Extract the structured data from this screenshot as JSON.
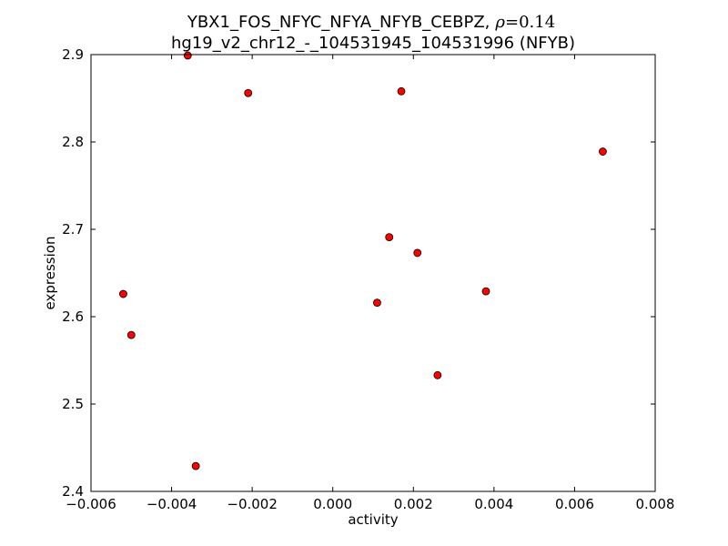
{
  "chart_data": {
    "type": "scatter",
    "title_line1": "YBX1_FOS_NFYC_NFYA_NFYB_CEBPZ,",
    "rho_symbol": "ρ",
    "rho_value": "=0.14",
    "title_line2": "hg19_v2_chr12_-_104531945_104531996 (NFYB)",
    "xlabel": "activity",
    "ylabel": "expression",
    "xlim": [
      -0.006,
      0.008
    ],
    "ylim": [
      2.4,
      2.9
    ],
    "xticks": [
      {
        "value": -0.006,
        "label": "−0.006"
      },
      {
        "value": -0.004,
        "label": "−0.004"
      },
      {
        "value": -0.002,
        "label": "−0.002"
      },
      {
        "value": 0.0,
        "label": "0.000"
      },
      {
        "value": 0.002,
        "label": "0.002"
      },
      {
        "value": 0.004,
        "label": "0.004"
      },
      {
        "value": 0.006,
        "label": "0.006"
      },
      {
        "value": 0.008,
        "label": "0.008"
      }
    ],
    "yticks": [
      {
        "value": 2.4,
        "label": "2.4"
      },
      {
        "value": 2.5,
        "label": "2.5"
      },
      {
        "value": 2.6,
        "label": "2.6"
      },
      {
        "value": 2.7,
        "label": "2.7"
      },
      {
        "value": 2.8,
        "label": "2.8"
      },
      {
        "value": 2.9,
        "label": "2.9"
      }
    ],
    "grid": false,
    "marker_color": "#ff0000",
    "marker_edge_color": "#000000",
    "points": [
      {
        "x": -0.0036,
        "y": 2.899
      },
      {
        "x": -0.0021,
        "y": 2.856
      },
      {
        "x": 0.0017,
        "y": 2.858
      },
      {
        "x": 0.0067,
        "y": 2.789
      },
      {
        "x": 0.0014,
        "y": 2.691
      },
      {
        "x": 0.0021,
        "y": 2.673
      },
      {
        "x": -0.0052,
        "y": 2.626
      },
      {
        "x": 0.0038,
        "y": 2.629
      },
      {
        "x": 0.0011,
        "y": 2.616
      },
      {
        "x": -0.005,
        "y": 2.579
      },
      {
        "x": 0.0026,
        "y": 2.533
      },
      {
        "x": -0.0034,
        "y": 2.429
      }
    ]
  }
}
